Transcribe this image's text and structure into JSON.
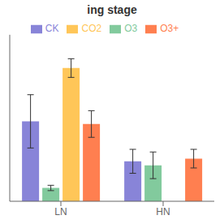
{
  "chart_data": {
    "type": "bar",
    "title": "ing stage",
    "categories": [
      "LN",
      "HN"
    ],
    "series": [
      {
        "name": "CK",
        "values": [
          0.6,
          0.3
        ],
        "errors": [
          0.2,
          0.09
        ]
      },
      {
        "name": "O3",
        "values": [
          0.1,
          0.27
        ],
        "errors": [
          0.02,
          0.1
        ]
      },
      {
        "name": "CO2",
        "values": [
          1.0,
          0.0
        ],
        "errors": [
          0.07,
          0.0
        ]
      },
      {
        "name": "O3+",
        "values": [
          0.58,
          0.32
        ],
        "errors": [
          0.1,
          0.07
        ]
      }
    ],
    "ylim": [
      0,
      1.25
    ],
    "grid": false,
    "legend": "top",
    "tick_labels": "x"
  }
}
